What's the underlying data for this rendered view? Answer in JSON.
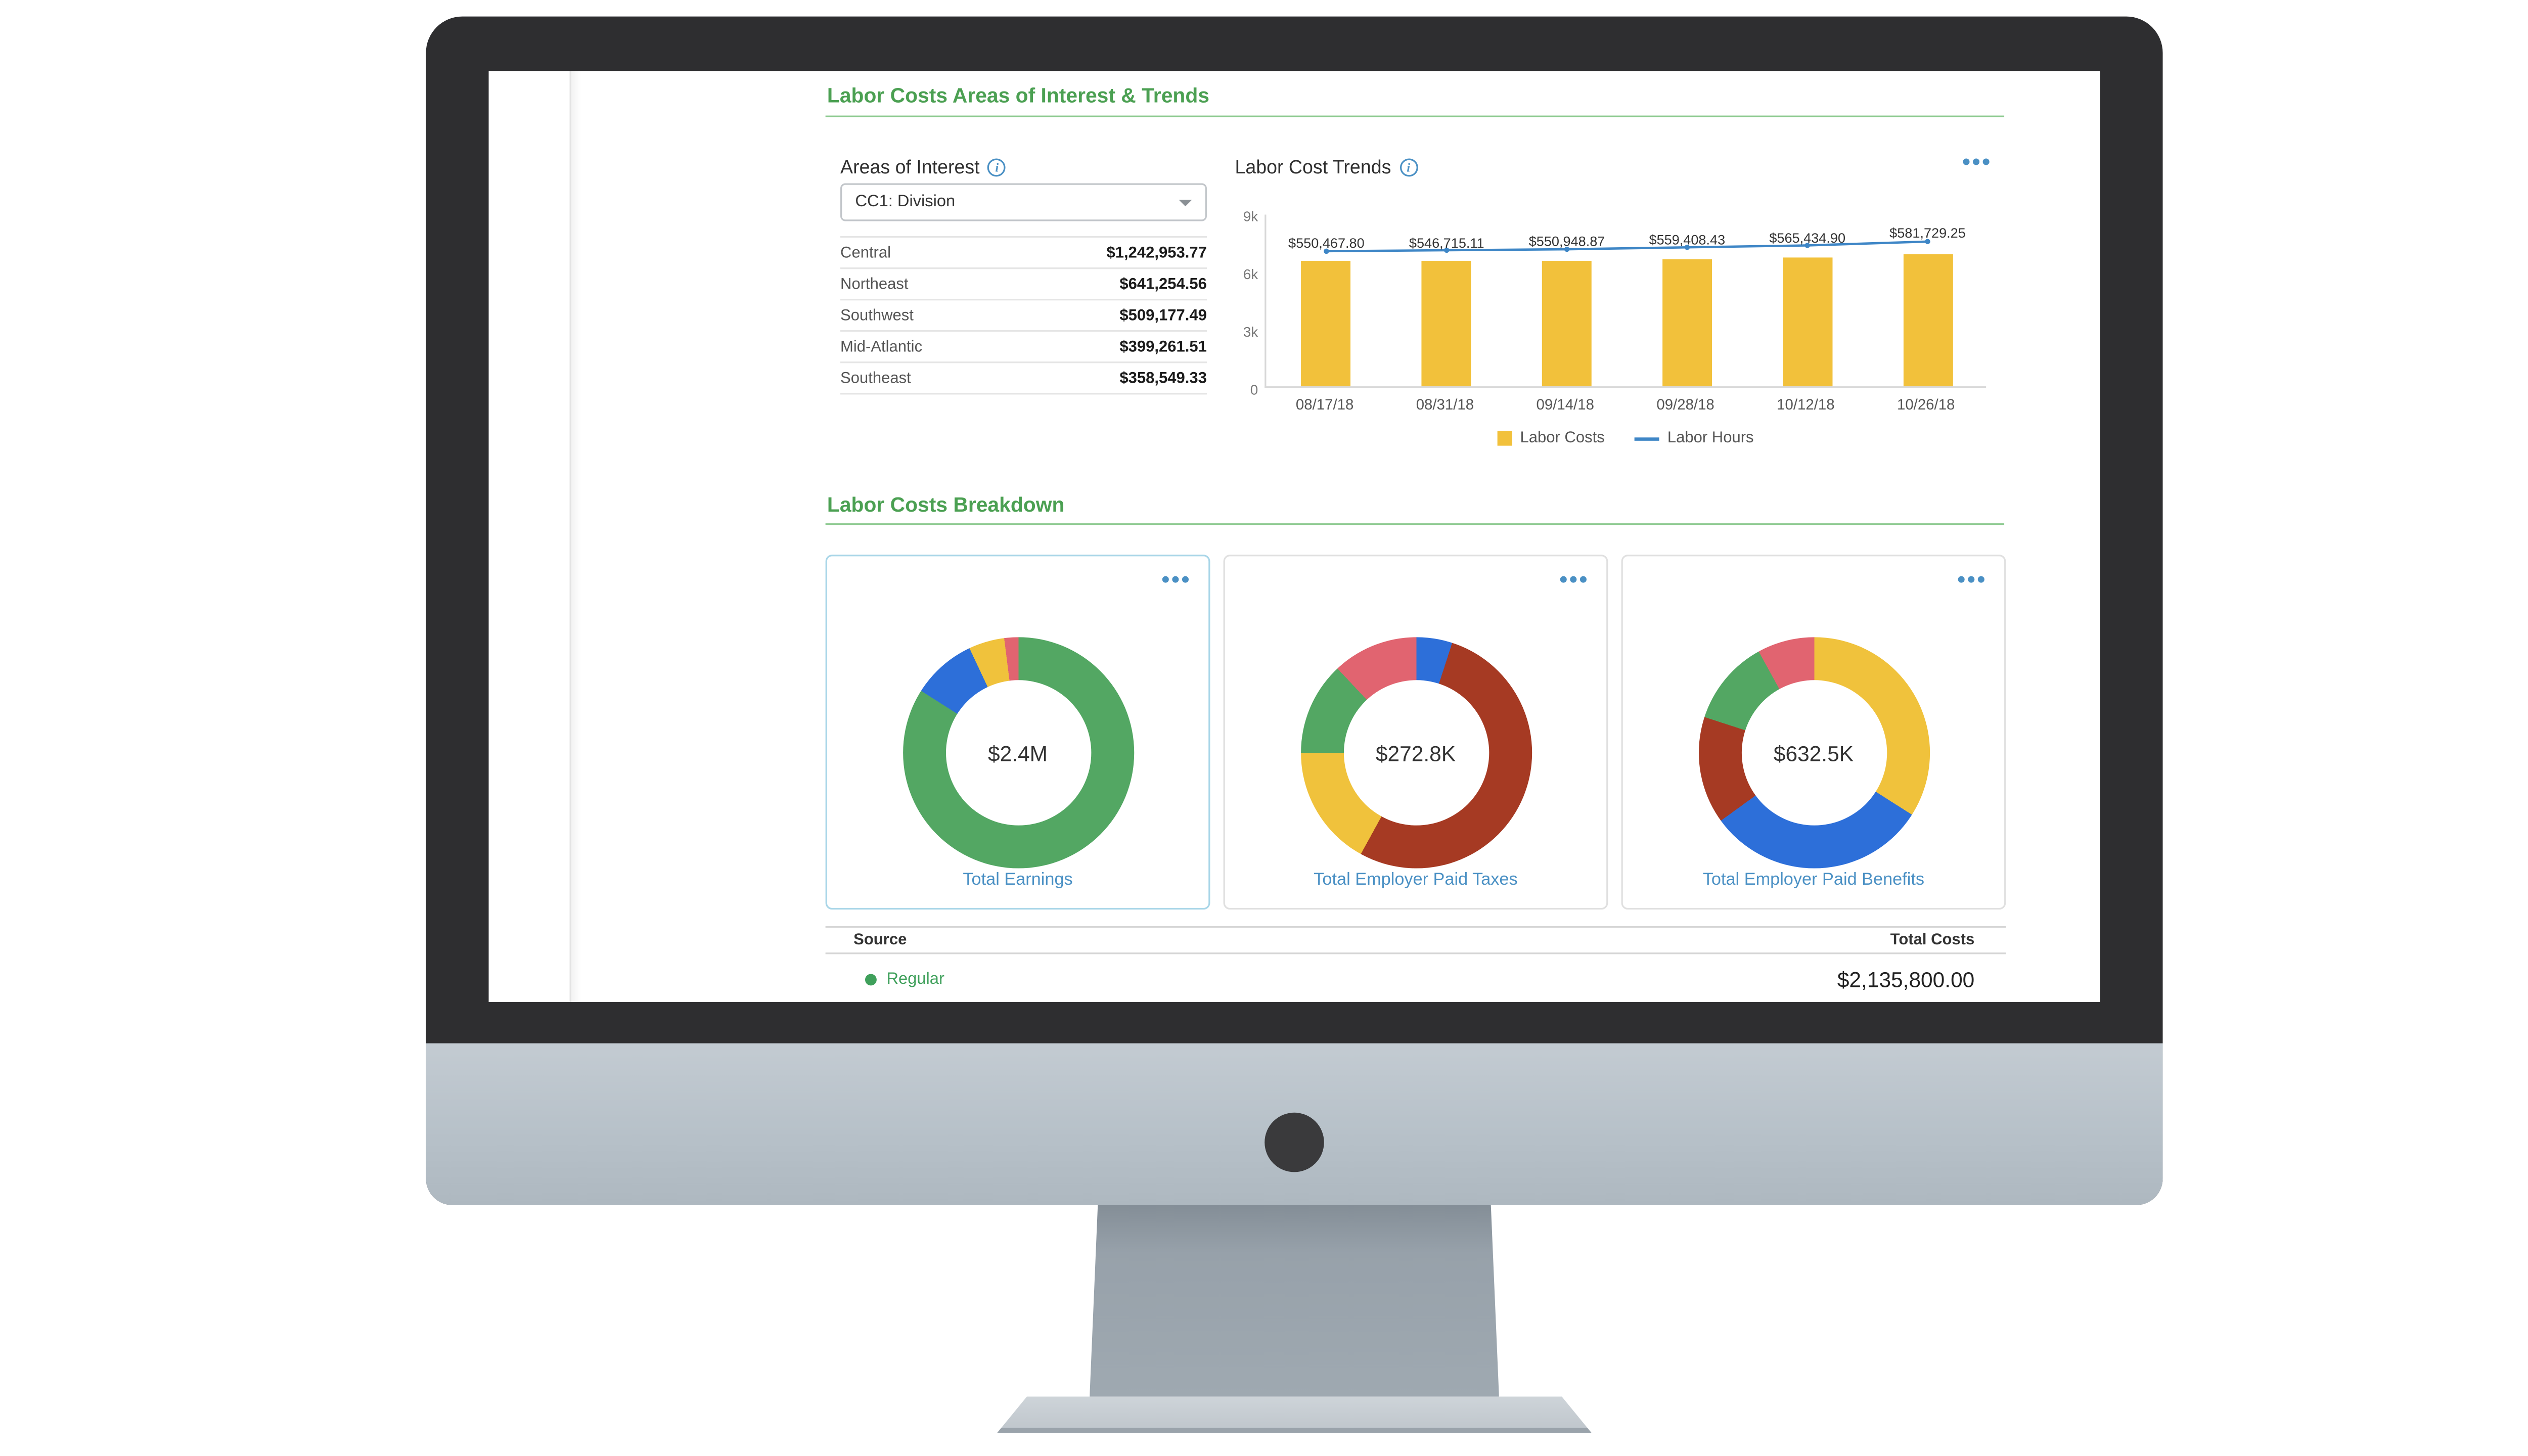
{
  "colors": {
    "section_green": "#4BA052",
    "rule_green": "#8CC98F",
    "link_blue": "#4A90C4",
    "bar_yellow": "#F2C13B",
    "line_blue": "#3E86C6",
    "donut_green": "#53A763",
    "donut_blue": "#2D6FD9",
    "donut_yellow": "#F0C23C",
    "donut_salmon": "#E16470",
    "donut_brick": "#A63A23",
    "regular_green": "#3FA05B"
  },
  "sections": {
    "areas_trends_title": "Labor Costs Areas of Interest & Trends",
    "breakdown_title": "Labor Costs Breakdown"
  },
  "areas_of_interest": {
    "title": "Areas of Interest",
    "dropdown_value": "CC1: Division",
    "rows": [
      {
        "label": "Central",
        "value": "$1,242,953.77"
      },
      {
        "label": "Northeast",
        "value": "$641,254.56"
      },
      {
        "label": "Southwest",
        "value": "$509,177.49"
      },
      {
        "label": "Mid-Atlantic",
        "value": "$399,261.51"
      },
      {
        "label": "Southeast",
        "value": "$358,549.33"
      }
    ]
  },
  "trends": {
    "title": "Labor Cost Trends",
    "legend": [
      {
        "label": "Labor Costs"
      },
      {
        "label": "Labor Hours"
      }
    ]
  },
  "chart_data": [
    {
      "type": "bar+line",
      "title": "Labor Cost Trends",
      "categories": [
        "08/17/18",
        "08/31/18",
        "09/14/18",
        "09/28/18",
        "10/12/18",
        "10/26/18"
      ],
      "yticks": [
        "9k",
        "6k",
        "3k",
        "0"
      ],
      "axis_max_k": 9,
      "bars_axis_k": [
        6.55,
        6.5,
        6.55,
        6.6,
        6.65,
        6.85
      ],
      "series": [
        {
          "name": "Labor Costs",
          "type": "bar",
          "color": "#F2C13B",
          "labels": [
            "$550,467.80",
            "$546,715.11",
            "$550,948.87",
            "$559,408.43",
            "$565,434.90",
            "$581,729.25"
          ],
          "values": [
            550467.8,
            546715.11,
            550948.87,
            559408.43,
            565434.9,
            581729.25
          ]
        },
        {
          "name": "Labor Hours",
          "type": "line",
          "color": "#3E86C6",
          "values_estimated_axis_k": [
            7.1,
            7.15,
            7.2,
            7.3,
            7.4,
            7.6
          ]
        }
      ],
      "legend_position": "bottom"
    },
    {
      "type": "pie",
      "title": "Total Earnings",
      "center_total": "$2.4M",
      "slices_estimated_pct": [
        {
          "color": "#53A763",
          "pct": 84
        },
        {
          "color": "#2D6FD9",
          "pct": 9
        },
        {
          "color": "#F0C23C",
          "pct": 5
        },
        {
          "color": "#E16470",
          "pct": 2
        }
      ]
    },
    {
      "type": "pie",
      "title": "Total Employer Paid Taxes",
      "center_total": "$272.8K",
      "slices_estimated_pct": [
        {
          "color": "#2D6FD9",
          "pct": 5
        },
        {
          "color": "#A63A23",
          "pct": 53
        },
        {
          "color": "#F0C23C",
          "pct": 17
        },
        {
          "color": "#53A763",
          "pct": 13
        },
        {
          "color": "#E16470",
          "pct": 12
        }
      ]
    },
    {
      "type": "pie",
      "title": "Total Employer Paid Benefits",
      "center_total": "$632.5K",
      "slices_estimated_pct": [
        {
          "color": "#F0C23C",
          "pct": 34
        },
        {
          "color": "#2D6FD9",
          "pct": 31
        },
        {
          "color": "#A63A23",
          "pct": 15
        },
        {
          "color": "#53A763",
          "pct": 12
        },
        {
          "color": "#E16470",
          "pct": 8
        }
      ]
    }
  ],
  "breakdown_cards": [
    {
      "center": "$2.4M",
      "label": "Total Earnings",
      "selected": true,
      "segments": [
        {
          "color": "#53A763",
          "pct": 84
        },
        {
          "color": "#2D6FD9",
          "pct": 9
        },
        {
          "color": "#F0C23C",
          "pct": 5
        },
        {
          "color": "#E16470",
          "pct": 2
        }
      ]
    },
    {
      "center": "$272.8K",
      "label": "Total Employer Paid Taxes",
      "selected": false,
      "segments": [
        {
          "color": "#2D6FD9",
          "pct": 5
        },
        {
          "color": "#A63A23",
          "pct": 53
        },
        {
          "color": "#F0C23C",
          "pct": 17
        },
        {
          "color": "#53A763",
          "pct": 13
        },
        {
          "color": "#E16470",
          "pct": 12
        }
      ]
    },
    {
      "center": "$632.5K",
      "label": "Total Employer Paid Benefits",
      "selected": false,
      "segments": [
        {
          "color": "#F0C23C",
          "pct": 34
        },
        {
          "color": "#2D6FD9",
          "pct": 31
        },
        {
          "color": "#A63A23",
          "pct": 15
        },
        {
          "color": "#53A763",
          "pct": 12
        },
        {
          "color": "#E16470",
          "pct": 8
        }
      ]
    }
  ],
  "source_table": {
    "header_source": "Source",
    "header_total": "Total Costs",
    "rows": [
      {
        "label": "Regular",
        "value": "$2,135,800.00",
        "dot_color": "#3FA05B"
      }
    ]
  }
}
